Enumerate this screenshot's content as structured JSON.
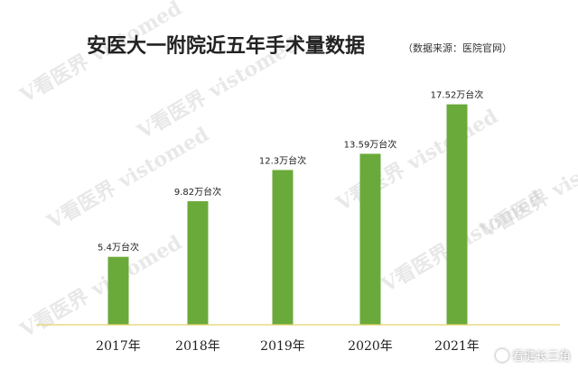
{
  "watermark_text": "V看医界 vistomed",
  "corner_badge": {
    "icon": "wechat-icon",
    "label": "看健长三角"
  },
  "colors": {
    "bar": "#6aaa3a",
    "axis_line": "#e3d36b",
    "title": "#222222"
  },
  "chart_data": {
    "type": "bar",
    "title": "安医大一附院近五年手术量数据",
    "subtitle": "（数据来源：医院官网）",
    "categories": [
      "2017年",
      "2018年",
      "2019年",
      "2020年",
      "2021年"
    ],
    "values": [
      5.4,
      9.82,
      12.3,
      13.59,
      17.52
    ],
    "data_labels": [
      "5.4万台次",
      "9.82万台次",
      "12.3万台次",
      "13.59万台次",
      "17.52万台次"
    ],
    "unit": "万台次",
    "ylim": [
      0,
      19
    ],
    "xlabel": "",
    "ylabel": "",
    "grid": false,
    "legend": "none"
  }
}
